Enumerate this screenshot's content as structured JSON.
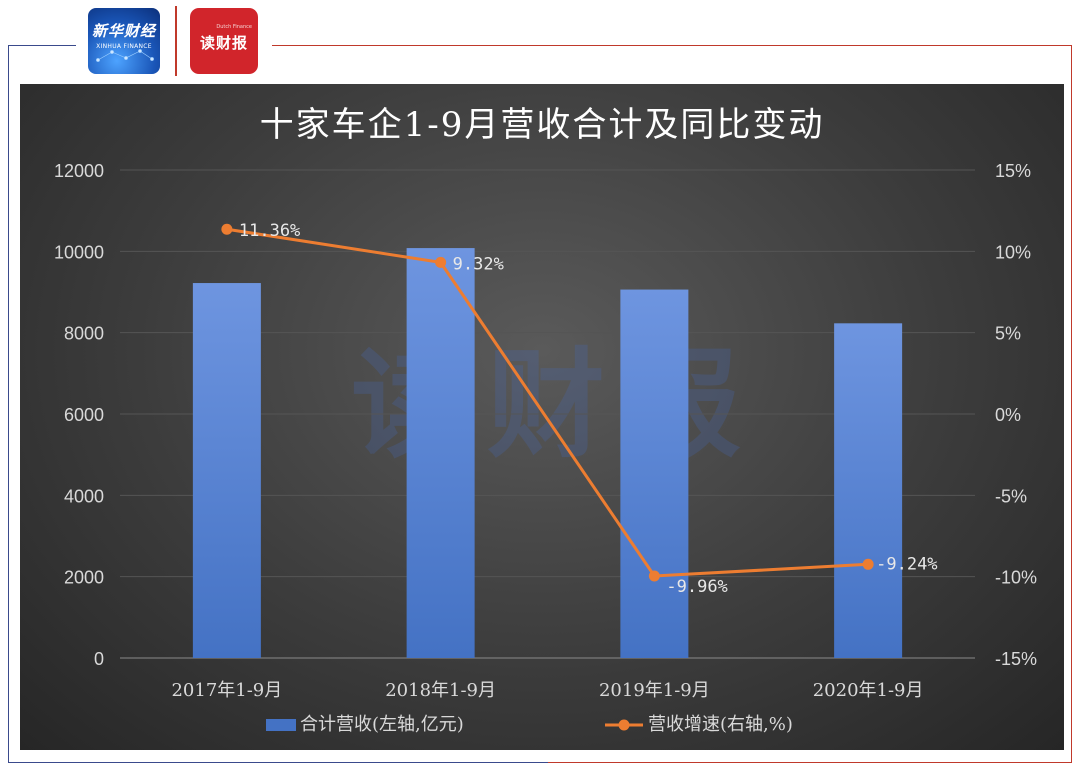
{
  "branding": {
    "left_logo_cn": "新华财经",
    "left_logo_en": "XINHUA FINANCE",
    "right_logo_cn": "读财报",
    "right_logo_small": "Dutch Finance"
  },
  "watermark": "读财报",
  "colors": {
    "bar": "#4472c4",
    "line": "#ed7d31",
    "panel_bg": "#3c3c3c",
    "text": "#d9d9d9",
    "frame_blue": "#3a4a8c",
    "frame_red": "#c0392b"
  },
  "chart_data": {
    "type": "bar",
    "title": "十家车企1-9月营收合计及同比变动",
    "categories": [
      "2017年1-9月",
      "2018年1-9月",
      "2019年1-9月",
      "2020年1-9月"
    ],
    "series": [
      {
        "name": "合计营收(左轴,亿元)",
        "type": "bar",
        "axis": "left",
        "values": [
          9220,
          10080,
          9060,
          8230
        ]
      },
      {
        "name": "营收增速(右轴,%)",
        "type": "line",
        "axis": "right",
        "values": [
          11.36,
          9.32,
          -9.96,
          -9.24
        ],
        "labels": [
          "11.36%",
          "9.32%",
          "-9.96%",
          "-9.24%"
        ]
      }
    ],
    "y_left": {
      "ylim": [
        0,
        12000
      ],
      "ticks": [
        "0",
        "2000",
        "4000",
        "6000",
        "8000",
        "10000",
        "12000"
      ]
    },
    "y_right": {
      "ylim": [
        -15,
        15
      ],
      "ticks": [
        "-15%",
        "-10%",
        "-5%",
        "0%",
        "5%",
        "10%",
        "15%"
      ]
    },
    "grid": true,
    "legend": "bottom"
  }
}
